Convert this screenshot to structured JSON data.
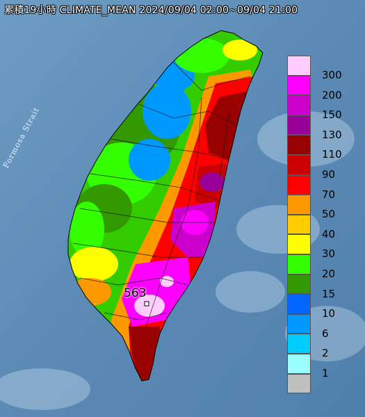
{
  "title": "累積19小時 CLIMATE_MEAN 2024/09/04 02:00~09/04 21:00",
  "strait_label": "Formosa Strait",
  "max_value_label": "563",
  "legend": {
    "items": [
      {
        "label": "300",
        "color": "#ffccff"
      },
      {
        "label": "200",
        "color": "#ff00ff"
      },
      {
        "label": "150",
        "color": "#cc00cc"
      },
      {
        "label": "130",
        "color": "#990099"
      },
      {
        "label": "110",
        "color": "#990000"
      },
      {
        "label": "90",
        "color": "#cc0000"
      },
      {
        "label": "70",
        "color": "#ff0000"
      },
      {
        "label": "50",
        "color": "#ff9900"
      },
      {
        "label": "40",
        "color": "#ffcc00"
      },
      {
        "label": "30",
        "color": "#ffff00"
      },
      {
        "label": "20",
        "color": "#33ff00"
      },
      {
        "label": "15",
        "color": "#339900"
      },
      {
        "label": "10",
        "color": "#0066ff"
      },
      {
        "label": "6",
        "color": "#0099ff"
      },
      {
        "label": "2",
        "color": "#00ccff"
      },
      {
        "label": "1",
        "color": "#99ffff"
      },
      {
        "label": "",
        "color": "#c0c0c0"
      }
    ]
  }
}
